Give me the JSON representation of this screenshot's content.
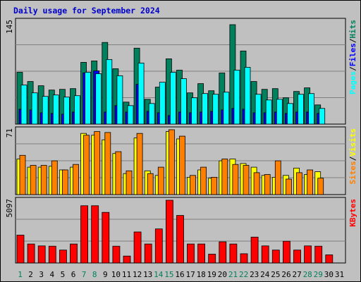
{
  "chart_data": {
    "type": "bar",
    "title": "Daily usage for September 2024",
    "categories": [
      "1",
      "2",
      "3",
      "4",
      "5",
      "6",
      "7",
      "8",
      "9",
      "10",
      "11",
      "12",
      "13",
      "14",
      "15",
      "16",
      "17",
      "18",
      "19",
      "20",
      "21",
      "22",
      "23",
      "24",
      "25",
      "26",
      "27",
      "28",
      "29",
      "30",
      "31"
    ],
    "weekend_days": [
      "1",
      "7",
      "8",
      "14",
      "15",
      "21",
      "22",
      "28",
      "29"
    ],
    "panels": [
      {
        "name": "hits",
        "ymax_label": "145",
        "ylim": [
          0,
          145
        ],
        "right_labels": [
          {
            "text": "Hits",
            "color": "#00805c"
          },
          {
            "text": "Files",
            "color": "#0000ff"
          },
          {
            "text": "Pages",
            "color": "#00ffff"
          }
        ],
        "series": [
          {
            "name": "Hits",
            "color": "#00805c",
            "values": [
              73,
              60,
              54,
              48,
              49,
              50,
              87,
              89,
              115,
              78,
              31,
              107,
              35,
              52,
              92,
              76,
              44,
              57,
              47,
              72,
              140,
              103,
              60,
              49,
              50,
              37,
              46,
              51,
              27,
              0,
              0
            ]
          },
          {
            "name": "Files",
            "color": "#0000ff",
            "values": [
              21,
              20,
              16,
              15,
              14,
              17,
              72,
              75,
              17,
              26,
              17,
              56,
              18,
              16,
              12,
              17,
              16,
              17,
              18,
              20,
              22,
              21,
              16,
              16,
              17,
              15,
              17,
              17,
              15,
              0,
              0
            ]
          },
          {
            "name": "Pages",
            "color": "#00ffff",
            "values": [
              55,
              44,
              39,
              41,
              38,
              40,
              73,
              71,
              91,
              68,
              26,
              86,
              29,
              59,
              73,
              64,
              37,
              43,
              42,
              45,
              76,
              80,
              42,
              34,
              35,
              29,
              42,
              43,
              22,
              0,
              0
            ]
          }
        ]
      },
      {
        "name": "visits",
        "ymax_label": "71",
        "ylim": [
          0,
          71
        ],
        "right_labels": [
          {
            "text": "Visits",
            "color": "#ffff00"
          },
          {
            "text": "Sites",
            "color": "#ff8000"
          }
        ],
        "series": [
          {
            "name": "Visits",
            "color": "#ffff00",
            "values": [
              39,
              30,
              30,
              31,
              27,
              30,
              67,
              65,
              60,
              45,
              23,
              62,
              26,
              21,
              69,
              61,
              19,
              27,
              18,
              37,
              39,
              34,
              30,
              21,
              19,
              21,
              29,
              22,
              25,
              0,
              0
            ]
          },
          {
            "name": "Sites",
            "color": "#ff8000",
            "values": [
              43,
              32,
              32,
              37,
              27,
              33,
              65,
              69,
              68,
              47,
              26,
              67,
              23,
              30,
              71,
              64,
              21,
              30,
              19,
              39,
              33,
              32,
              24,
              22,
              37,
              17,
              24,
              27,
              18,
              0,
              0
            ]
          }
        ]
      },
      {
        "name": "kbytes",
        "ymax_label": "5097",
        "ylim": [
          0,
          5097
        ],
        "right_labels": [
          {
            "text": "KBytes",
            "color": "#ff0000"
          }
        ],
        "series": [
          {
            "name": "KBytes",
            "color": "#ff0000",
            "values": [
              2262,
              1540,
              1387,
              1361,
              1047,
              1540,
              4648,
              4648,
              4110,
              1361,
              560,
              2520,
              1540,
              2768,
              5097,
              3861,
              1540,
              1540,
              717,
              1720,
              1540,
              750,
              2104,
              1387,
              1047,
              1764,
              1047,
              1387,
              1361,
              660,
              0
            ]
          }
        ]
      }
    ]
  }
}
